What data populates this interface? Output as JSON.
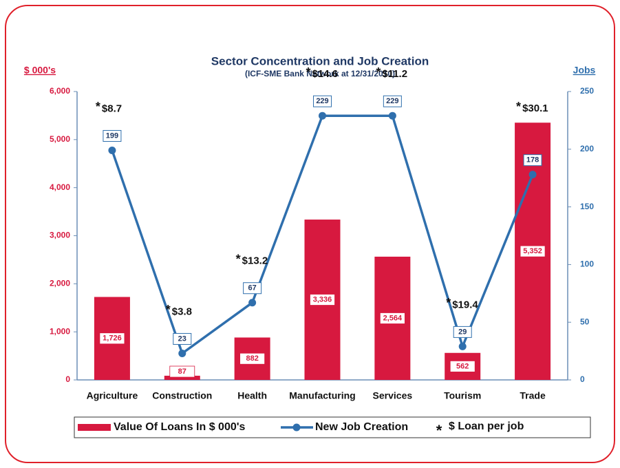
{
  "chart_data": {
    "type": "bar",
    "title": "Sector Concentration and Job Creation",
    "subtitle": "(ICF-SME Bank Network at 12/31/2010)",
    "y_label": "$ 000's",
    "y2_label": "Jobs",
    "categories": [
      "Agriculture",
      "Construction",
      "Health",
      "Manufacturing",
      "Services",
      "Tourism",
      "Trade"
    ],
    "series": [
      {
        "name": "Value Of Loans In $ 000's",
        "type": "bar",
        "color": "#d7193f",
        "values": [
          1726,
          87,
          882,
          3336,
          2564,
          562,
          5352
        ],
        "value_labels": [
          "1,726",
          "87",
          "882",
          "3,336",
          "2,564",
          "562",
          "5,352"
        ]
      },
      {
        "name": "New Job Creation",
        "type": "line",
        "axis": "y2",
        "color": "#2f6fad",
        "values": [
          199,
          23,
          67,
          229,
          229,
          29,
          178
        ]
      }
    ],
    "annotation_marker": "*",
    "annotations": [
      "$8.7",
      "$3.8",
      "$13.2",
      "$14.6",
      "$11.2",
      "$19.4",
      "$30.1"
    ],
    "legend_note": {
      "marker": "*",
      "label": "$ Loan per job"
    },
    "ylim": [
      0,
      6000
    ],
    "yticks": [
      0,
      {
        "value": 1000,
        "label": "1,000"
      },
      {
        "value": 2000,
        "label": "2,000"
      },
      {
        "value": 3000,
        "label": "3,000"
      },
      {
        "value": 4000,
        "label": "4,000"
      },
      {
        "value": 5000,
        "label": "5,000"
      },
      {
        "value": 6000,
        "label": "6,000"
      }
    ],
    "y2lim": [
      0,
      250
    ],
    "y2ticks": [
      0,
      50,
      100,
      150,
      200,
      250
    ],
    "grid": false,
    "legend": "bottom"
  }
}
